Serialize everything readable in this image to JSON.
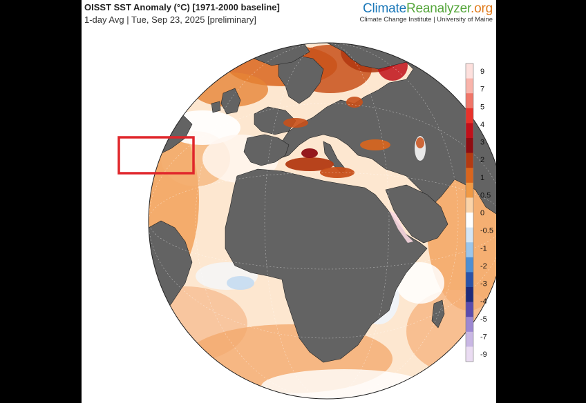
{
  "header": {
    "title": "OISST SST Anomaly (°C) [1971-2000 baseline]",
    "subtitle": "1-day Avg | Tue, Sep 23, 2025 [preliminary]"
  },
  "brand": {
    "part1": "Climate",
    "part2": "Reanalyzer",
    "part3": ".org",
    "sub": "Climate Change Institute | University of Maine"
  },
  "colorbar": {
    "labels": [
      "9",
      "7",
      "5",
      "4",
      "3",
      "2",
      "1",
      "0.5",
      "0",
      "-0.5",
      "-1",
      "-2",
      "-3",
      "-4",
      "-5",
      "-7",
      "-9"
    ],
    "colors": [
      "#fde0dd",
      "#f9b4ab",
      "#f07669",
      "#e8322b",
      "#c0101a",
      "#8e0d12",
      "#b33a12",
      "#d9651d",
      "#f19a45",
      "#fbd3a8",
      "#ffffff",
      "#d5e6f5",
      "#9cc6eb",
      "#4e8fd3",
      "#2b53a8",
      "#1f2b7a",
      "#5b4cae",
      "#9d88d2",
      "#c9b7e4",
      "#eadcf2"
    ]
  },
  "map": {
    "land_color": "#636363",
    "highlight_box_color": "#e0262b"
  }
}
